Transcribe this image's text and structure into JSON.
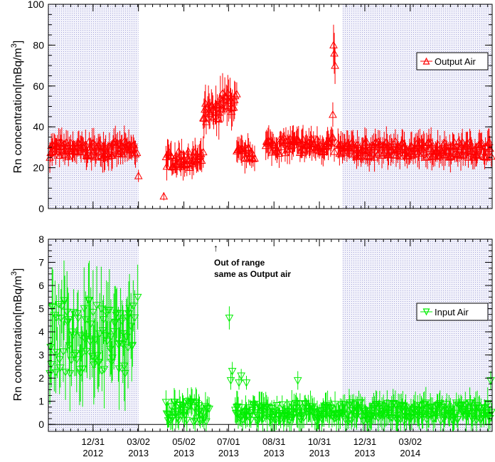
{
  "chart_data": [
    {
      "type": "scatter",
      "ylabel_main": "Rn concentration[mBq/m",
      "ylabel_sup": "3",
      "ylabel_end": "]",
      "xlim": [
        "2012-11-01",
        "2014-06-20"
      ],
      "ylim": [
        0,
        100
      ],
      "yticks": [
        0,
        20,
        40,
        60,
        80,
        100
      ],
      "shaded_periods": [
        [
          "2012-11-01",
          "2013-03-02"
        ],
        [
          "2013-12-01",
          "2014-06-20"
        ]
      ],
      "series": [
        {
          "name": "Output Air",
          "color": "#ff0000",
          "marker": "triangle-up",
          "segments": [
            {
              "start": "2012-11-03",
              "end": "2013-02-28",
              "base": 29,
              "spread": 4,
              "err": 6
            },
            {
              "start": "2013-04-08",
              "end": "2013-05-28",
              "base": 24,
              "spread": 4,
              "err": 6
            },
            {
              "start": "2013-05-28",
              "end": "2013-06-18",
              "base": 46,
              "spread": 6,
              "err": 8
            },
            {
              "start": "2013-06-18",
              "end": "2013-07-12",
              "base": 52,
              "spread": 5,
              "err": 9
            },
            {
              "start": "2013-07-12",
              "end": "2013-08-05",
              "base": 27,
              "spread": 3,
              "err": 6
            },
            {
              "start": "2013-08-20",
              "end": "2013-11-20",
              "base": 31,
              "spread": 4,
              "err": 6
            },
            {
              "start": "2013-11-25",
              "end": "2014-06-19",
              "base": 29,
              "spread": 4,
              "err": 6
            }
          ],
          "points": [
            {
              "x": "2013-03-02",
              "y": 16,
              "err": 3
            },
            {
              "x": "2013-04-05",
              "y": 6,
              "err": 2
            },
            {
              "x": "2013-11-18",
              "y": 46,
              "err": 6
            },
            {
              "x": "2013-11-19",
              "y": 80,
              "err": 10
            },
            {
              "x": "2013-11-20",
              "y": 76,
              "err": 10
            },
            {
              "x": "2013-11-21",
              "y": 70,
              "err": 9
            }
          ]
        }
      ]
    },
    {
      "type": "scatter",
      "ylabel_main": "Rn concentration[mBq/m",
      "ylabel_sup": "3",
      "ylabel_end": "]",
      "xlim": [
        "2012-11-01",
        "2014-06-20"
      ],
      "ylim": [
        -0.3,
        8
      ],
      "yticks": [
        0,
        1,
        2,
        3,
        4,
        5,
        6,
        7,
        8
      ],
      "xticks": [
        {
          "date": "2012-12-31",
          "line1": "12/31",
          "line2": "2012"
        },
        {
          "date": "2013-03-02",
          "line1": "03/02",
          "line2": "2013"
        },
        {
          "date": "2013-05-02",
          "line1": "05/02",
          "line2": "2013"
        },
        {
          "date": "2013-07-01",
          "line1": "07/01",
          "line2": "2013"
        },
        {
          "date": "2013-08-31",
          "line1": "08/31",
          "line2": "2013"
        },
        {
          "date": "2013-10-31",
          "line1": "10/31",
          "line2": "2013"
        },
        {
          "date": "2013-12-31",
          "line1": "12/31",
          "line2": "2013"
        },
        {
          "date": "2014-03-02",
          "line1": "03/02",
          "line2": "2014"
        }
      ],
      "shaded_periods": [
        [
          "2012-11-01",
          "2013-03-02"
        ],
        [
          "2013-12-01",
          "2014-06-20"
        ]
      ],
      "annotation": {
        "arrow": "↑",
        "line1": "Out of range",
        "line2": "same as Output air",
        "x": "2013-06-10",
        "y": 7.5
      },
      "series": [
        {
          "name": "Input Air",
          "color": "#00ee00",
          "marker": "triangle-down",
          "segments": [
            {
              "start": "2012-11-03",
              "end": "2013-02-25",
              "base": 3.8,
              "spread": 1.6,
              "err": 1.4
            },
            {
              "start": "2013-04-08",
              "end": "2013-06-05",
              "base": 0.55,
              "spread": 0.45,
              "err": 0.5
            },
            {
              "start": "2013-07-10",
              "end": "2013-11-30",
              "base": 0.55,
              "spread": 0.4,
              "err": 0.55
            },
            {
              "start": "2013-12-01",
              "end": "2014-06-19",
              "base": 0.55,
              "spread": 0.4,
              "err": 0.55
            }
          ],
          "points": [
            {
              "x": "2013-03-01",
              "y": 5.5,
              "err": 1.4
            },
            {
              "x": "2013-07-02",
              "y": 4.6,
              "err": 0.5
            },
            {
              "x": "2013-07-04",
              "y": 1.9,
              "err": 0.4
            },
            {
              "x": "2013-07-06",
              "y": 2.3,
              "err": 0.4
            },
            {
              "x": "2013-07-15",
              "y": 1.8,
              "err": 0.3
            },
            {
              "x": "2013-07-18",
              "y": 2.1,
              "err": 0.3
            },
            {
              "x": "2013-07-25",
              "y": 1.8,
              "err": 0.3
            },
            {
              "x": "2013-10-02",
              "y": 1.9,
              "err": 0.4
            },
            {
              "x": "2014-06-18",
              "y": 1.9,
              "err": 0.4
            }
          ]
        }
      ]
    }
  ]
}
